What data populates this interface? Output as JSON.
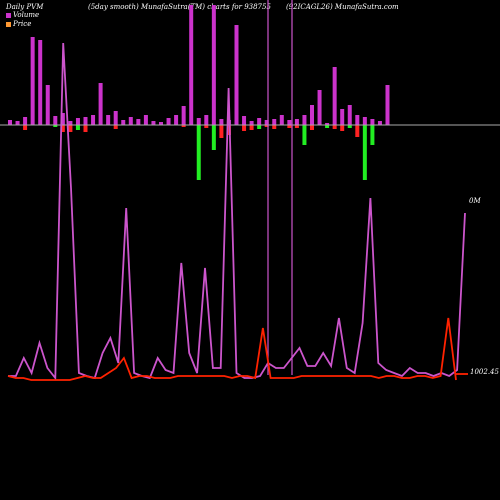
{
  "header": {
    "left": "Daily PVM",
    "middle": "(5day smooth) MunafaSutra(TM) charts for 938755",
    "right": "(92ICAGL26) MunafaSutra.com"
  },
  "legend": {
    "volume_label": "Volume",
    "price_label": "Price",
    "volume_color": "#cc33cc",
    "price_color": "#ff9933"
  },
  "labels": {
    "volume_tag": "0M",
    "price_tag": "1002.45"
  },
  "colors": {
    "up_bar": "#cc33cc",
    "down_bar_red": "#ff2222",
    "down_bar_green": "#22ee22",
    "baseline": "#aaaaaa",
    "volume_line": "#cc55cc",
    "price_line": "#ff2200"
  },
  "chart_data": {
    "type": "line",
    "series": [
      {
        "name": "Volume",
        "values": [
          12,
          12,
          30,
          15,
          45,
          20,
          10,
          345,
          200,
          15,
          12,
          10,
          35,
          50,
          25,
          180,
          15,
          12,
          10,
          30,
          18,
          15,
          125,
          35,
          15,
          120,
          20,
          20,
          300,
          15,
          10,
          10,
          12,
          25,
          20,
          20,
          30,
          40,
          22,
          22,
          35,
          22,
          70,
          20,
          15,
          65,
          190,
          25,
          18,
          15,
          12,
          20,
          15,
          15,
          12,
          15,
          12,
          18,
          175
        ]
      },
      {
        "name": "Price",
        "values": [
          12,
          10,
          10,
          8,
          8,
          8,
          8,
          8,
          8,
          10,
          12,
          10,
          10,
          15,
          20,
          30,
          10,
          12,
          12,
          10,
          10,
          10,
          12,
          12,
          12,
          12,
          12,
          12,
          12,
          10,
          12,
          12,
          10,
          60,
          10,
          10,
          10,
          10,
          12,
          12,
          12,
          12,
          12,
          12,
          12,
          12,
          12,
          12,
          10,
          12,
          12,
          10,
          10,
          12,
          12,
          10,
          12,
          70,
          8
        ]
      }
    ],
    "bars": {
      "up": [
        5,
        4,
        8,
        88,
        85,
        40,
        9,
        12,
        4,
        7,
        8,
        10,
        42,
        10,
        14,
        5,
        8,
        6,
        10,
        4,
        3,
        7,
        10,
        19,
        120,
        7,
        10,
        120,
        6,
        5,
        100,
        9,
        4,
        7,
        5,
        6,
        10,
        5,
        6,
        10,
        20,
        35,
        2,
        58,
        16,
        20,
        10,
        8,
        6,
        4,
        40
      ],
      "down": [
        0,
        0,
        5,
        0,
        0,
        0,
        2,
        7,
        7,
        5,
        7,
        0,
        0,
        0,
        4,
        0,
        0,
        0,
        0,
        0,
        0,
        0,
        0,
        2,
        0,
        55,
        3,
        25,
        13,
        10,
        0,
        6,
        5,
        4,
        2,
        4,
        0,
        3,
        3,
        20,
        5,
        0,
        3,
        4,
        6,
        3,
        12,
        55,
        20,
        0,
        0
      ]
    }
  }
}
